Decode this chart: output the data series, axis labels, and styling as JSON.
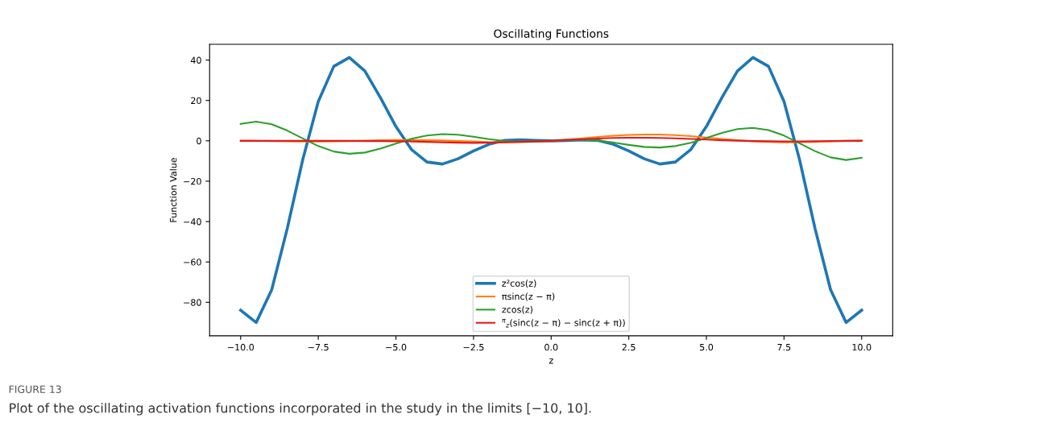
{
  "chart_data": {
    "type": "line",
    "title": "Oscillating Functions",
    "xlabel": "z",
    "ylabel": "Function Value",
    "x": [
      -10,
      -9.5,
      -9,
      -8.5,
      -8,
      -7.5,
      -7,
      -6.5,
      -6,
      -5.5,
      -5,
      -4.5,
      -4,
      -3.5,
      -3,
      -2.5,
      -2,
      -1.5,
      -1,
      -0.5,
      0,
      0.5,
      1,
      1.5,
      2,
      2.5,
      3,
      3.5,
      4,
      4.5,
      5,
      5.5,
      6,
      6.5,
      7,
      7.5,
      8,
      8.5,
      9,
      9.5,
      10
    ],
    "series": [
      {
        "name": "z²cos(z)",
        "color": "#1f77b4",
        "values": [
          -83.9,
          -90.0,
          -73.8,
          -43.5,
          -9.3,
          19.5,
          36.9,
          41.3,
          34.6,
          21.4,
          7.1,
          -4.3,
          -10.5,
          -11.5,
          -8.9,
          -5.0,
          -1.7,
          0.2,
          0.5,
          0.2,
          0,
          0.2,
          0.5,
          0.2,
          -1.7,
          -5.0,
          -8.9,
          -11.5,
          -10.5,
          -4.3,
          7.1,
          21.4,
          34.6,
          41.3,
          36.9,
          19.5,
          -9.3,
          -43.5,
          -73.8,
          -90.0,
          -83.9
        ]
      },
      {
        "name": "πsinc(z − π)",
        "color": "#ff7f0e",
        "values": [
          0.1,
          0.0,
          -0.1,
          -0.2,
          -0.3,
          -0.3,
          -0.2,
          -0.1,
          0.1,
          0.3,
          0.4,
          0.4,
          0.3,
          0.2,
          -0.1,
          -0.3,
          -0.6,
          -0.7,
          -0.6,
          -0.4,
          0,
          0.6,
          1.2,
          1.9,
          2.5,
          2.9,
          3.1,
          3.1,
          2.8,
          2.3,
          1.6,
          0.9,
          0.3,
          -0.2,
          -0.5,
          -0.7,
          -0.6,
          -0.5,
          -0.2,
          0.0,
          0.2
        ]
      },
      {
        "name": "zcos(z)",
        "color": "#2ca02c",
        "values": [
          8.4,
          9.5,
          8.2,
          5.1,
          1.2,
          -2.6,
          -5.3,
          -6.4,
          -5.8,
          -3.9,
          -1.4,
          1.0,
          2.6,
          3.3,
          3.0,
          2.0,
          0.8,
          -0.1,
          -0.5,
          -0.4,
          0,
          0.4,
          0.5,
          0.1,
          -0.8,
          -2.0,
          -3.0,
          -3.3,
          -2.6,
          -1.0,
          1.4,
          3.9,
          5.8,
          6.4,
          5.3,
          2.6,
          -1.2,
          -5.1,
          -8.2,
          -9.5,
          -8.4
        ]
      },
      {
        "name": "$^{π}$$_{z}$(sinc(z − π) − sinc(z + π))",
        "color": "#e41a1c",
        "values": [
          0,
          0,
          0,
          0,
          0,
          0,
          0,
          0,
          -0.1,
          -0.1,
          -0.2,
          -0.3,
          -0.5,
          -0.7,
          -0.9,
          -1.0,
          -0.9,
          -0.7,
          -0.4,
          -0.2,
          0,
          0.4,
          0.8,
          1.1,
          1.4,
          1.5,
          1.5,
          1.4,
          1.2,
          0.9,
          0.6,
          0.3,
          0.1,
          -0.1,
          -0.2,
          -0.3,
          -0.3,
          -0.2,
          -0.1,
          0,
          0
        ]
      }
    ],
    "xlim": [
      -11,
      11
    ],
    "ylim": [
      -96.6,
      47.8
    ],
    "xticks": [
      {
        "value": -10,
        "label": "−10.0"
      },
      {
        "value": -7.5,
        "label": "−7.5"
      },
      {
        "value": -5,
        "label": "−5.0"
      },
      {
        "value": -2.5,
        "label": "−2.5"
      },
      {
        "value": 0,
        "label": "0.0"
      },
      {
        "value": 2.5,
        "label": "2.5"
      },
      {
        "value": 5,
        "label": "5.0"
      },
      {
        "value": 7.5,
        "label": "7.5"
      },
      {
        "value": 10,
        "label": "10.0"
      }
    ],
    "yticks": [
      {
        "value": -80,
        "label": "−80"
      },
      {
        "value": -60,
        "label": "−60"
      },
      {
        "value": -40,
        "label": "−40"
      },
      {
        "value": -20,
        "label": "−20"
      },
      0,
      20,
      40
    ],
    "legend": "lower center",
    "grid": false,
    "annotations": [
      "FIGURE 13",
      "Plot of the oscillating activation functions incorporated in the study in the limits [−10, 10]."
    ]
  }
}
